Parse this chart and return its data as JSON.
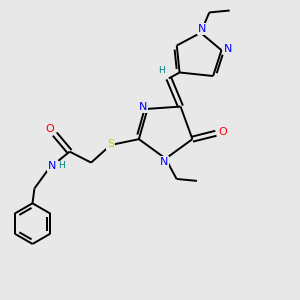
{
  "bg_color": "#e8e8e8",
  "bond_color": "#000000",
  "atom_colors": {
    "N": "#0000ff",
    "O": "#ff0000",
    "S": "#cccc00",
    "H": "#008080",
    "C": "#000000"
  },
  "lw": 1.4,
  "fs": 8.0,
  "fs_small": 6.5
}
